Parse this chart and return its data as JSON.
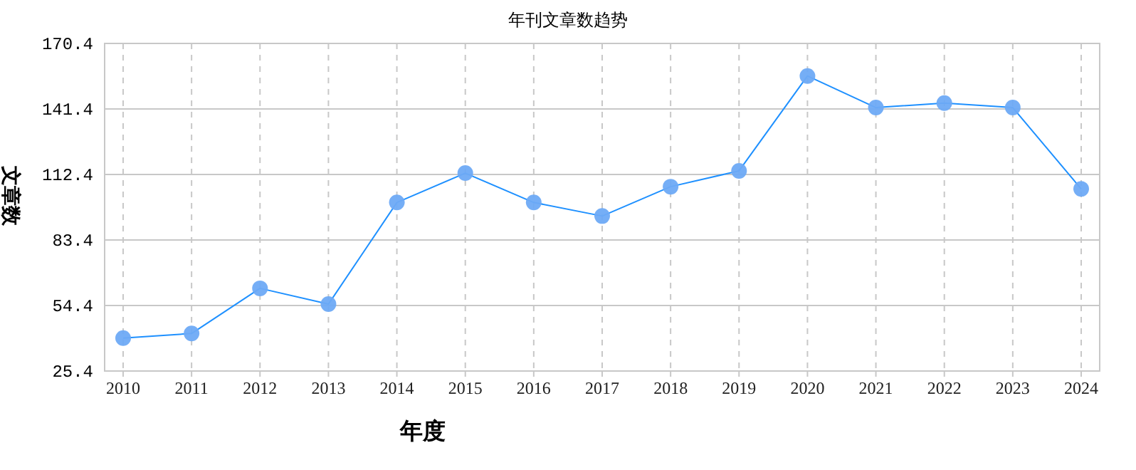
{
  "chart_data": {
    "type": "line",
    "title": "年刊文章数趋势",
    "xlabel": "年度",
    "ylabel": "文章数",
    "categories": [
      "2010",
      "2011",
      "2012",
      "2013",
      "2014",
      "2015",
      "2016",
      "2017",
      "2018",
      "2019",
      "2020",
      "2021",
      "2022",
      "2023",
      "2024"
    ],
    "series": [
      {
        "color": "#1e90ff",
        "values": [
          40,
          42,
          62,
          55,
          100,
          113,
          100,
          94,
          107,
          114,
          156,
          142,
          144,
          142,
          106
        ]
      }
    ],
    "ylim": [
      25.4,
      170.4
    ],
    "yticks": [
      25.4,
      54.4,
      83.4,
      112.4,
      141.4,
      170.4
    ],
    "grid": true,
    "marker": "circle"
  }
}
